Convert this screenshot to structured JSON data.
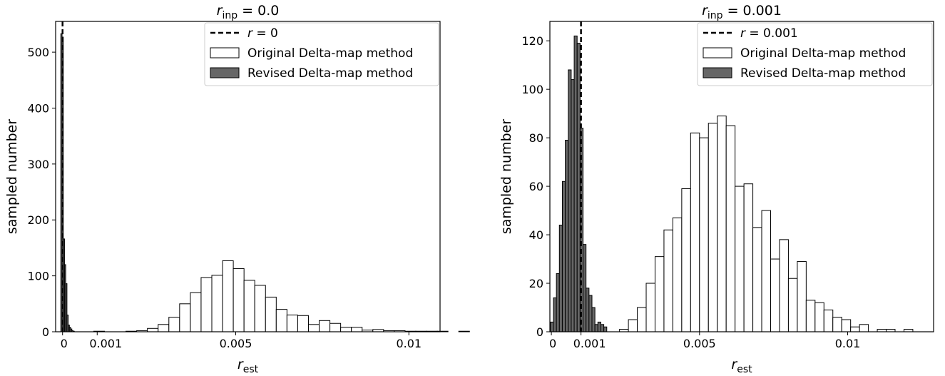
{
  "chart_data": [
    {
      "type": "bar",
      "subtype": "histogram",
      "title_main": "r",
      "title_sub": "inp",
      "title_tail": " = 0.0",
      "xlabel_main": "r",
      "xlabel_sub": "est",
      "ylabel": "sampled number",
      "xlim": [
        -0.0002,
        0.0109
      ],
      "ylim": [
        0,
        555
      ],
      "xticks": [
        0,
        0.001,
        0.005,
        0.01
      ],
      "xtick_labels": [
        "0",
        "0.001",
        "0.005",
        "0.01"
      ],
      "yticks": [
        0,
        100,
        200,
        300,
        400,
        500
      ],
      "ytick_labels": [
        "0",
        "100",
        "200",
        "300",
        "400",
        "500"
      ],
      "vline": 0,
      "legend_position": "upper-right",
      "legend": [
        {
          "kind": "dashed-line",
          "label_main": "r",
          "label_tail": " = 0"
        },
        {
          "kind": "open-bar",
          "label": "Original Delta-map method"
        },
        {
          "kind": "filled-bar",
          "label": "Revised Delta-map method"
        }
      ],
      "series": [
        {
          "style": "open",
          "bin_start": 0.0009,
          "bin_width": 0.00031,
          "counts": [
            1,
            0,
            0,
            1,
            2,
            6,
            13,
            26,
            50,
            70,
            97,
            101,
            127,
            113,
            92,
            83,
            62,
            40,
            30,
            29,
            13,
            20,
            15,
            8,
            8,
            3,
            4,
            2,
            2,
            1,
            1,
            1,
            1,
            0,
            1
          ]
        },
        {
          "style": "filled",
          "bin_start": -5e-05,
          "bin_width": 3.54e-05,
          "counts": [
            533,
            527,
            166,
            120,
            86,
            30,
            12,
            8,
            5,
            2,
            1
          ]
        }
      ],
      "colors": {
        "open_fill": "#ffffff",
        "filled_fill": "#666666",
        "edge": "#000000"
      }
    },
    {
      "type": "bar",
      "subtype": "histogram",
      "title_main": "r",
      "title_sub": "inp",
      "title_tail": " = 0.001",
      "xlabel_main": "r",
      "xlabel_sub": "est",
      "ylabel": "sampled number",
      "xlim": [
        -5e-05,
        0.0129
      ],
      "ylim": [
        0,
        128
      ],
      "xticks": [
        0,
        0.001,
        0.005,
        0.01
      ],
      "xtick_labels": [
        "0",
        "0.001",
        "0.005",
        "0.01"
      ],
      "yticks": [
        0,
        20,
        40,
        60,
        80,
        100,
        120
      ],
      "ytick_labels": [
        "0",
        "20",
        "40",
        "60",
        "80",
        "100",
        "120"
      ],
      "vline": 0.001,
      "legend_position": "upper-right",
      "legend": [
        {
          "kind": "dashed-line",
          "label_main": "r",
          "label_tail": " = 0.001"
        },
        {
          "kind": "open-bar",
          "label": "Original Delta-map method"
        },
        {
          "kind": "filled-bar",
          "label": "Revised Delta-map method"
        }
      ],
      "series": [
        {
          "style": "open",
          "bin_start": 0.0023,
          "bin_width": 0.0003,
          "counts": [
            1,
            5,
            10,
            20,
            31,
            42,
            47,
            59,
            82,
            80,
            86,
            89,
            85,
            60,
            61,
            43,
            50,
            30,
            38,
            22,
            29,
            13,
            12,
            9,
            6,
            5,
            2,
            3,
            0,
            1,
            1,
            0,
            1
          ]
        },
        {
          "style": "filled",
          "bin_start": -3e-05,
          "bin_width": 0.0001,
          "counts": [
            4,
            14,
            24,
            44,
            62,
            79,
            108,
            104,
            122,
            119,
            84,
            36,
            18,
            15,
            10,
            3,
            4,
            3,
            2
          ]
        }
      ],
      "colors": {
        "open_fill": "#ffffff",
        "filled_fill": "#666666",
        "edge": "#000000"
      }
    }
  ]
}
